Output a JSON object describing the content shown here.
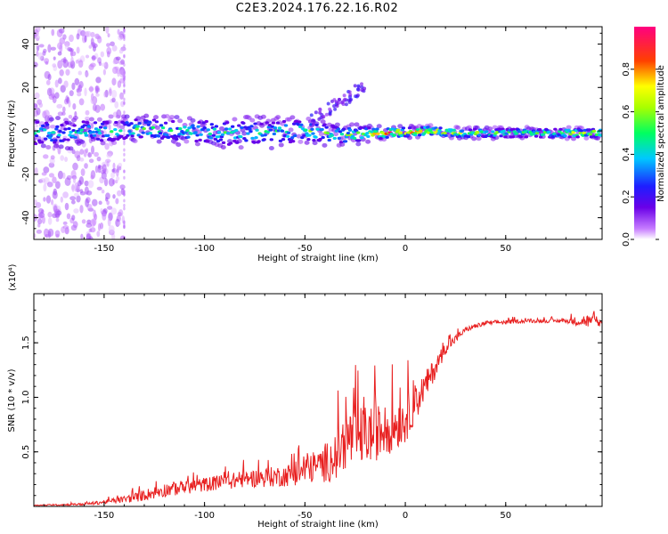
{
  "title": "C2E3.2024.176.22.16.R02",
  "chart_data": [
    {
      "type": "heatmap",
      "xlabel": "Height of straight line (km)",
      "ylabel": "Frequency (Hz)",
      "xlim": [
        -185,
        98
      ],
      "ylim": [
        -50,
        48
      ],
      "xticks": [
        -150,
        -100,
        -50,
        0,
        50
      ],
      "yticks": [
        -40,
        -20,
        0,
        20,
        40
      ],
      "colorbar": {
        "label": "Normalized spectral amplitude",
        "range": [
          0.0,
          1.0
        ],
        "ticks": [
          0.0,
          0.2,
          0.4,
          0.6,
          0.8
        ],
        "tick_labels": [
          "0.0",
          "0.2",
          "0.4",
          "0.6",
          "0.8"
        ],
        "colormap": "rainbow (white-violet-blue-cyan-green-yellow-red-magenta)"
      },
      "bands": [
        {
          "x": [
            -170,
            -150,
            -130,
            -110,
            -90,
            -70,
            -50,
            -30,
            -10,
            10,
            30,
            50,
            70,
            90
          ],
          "center_hz": [
            -1,
            0,
            1,
            0,
            -1,
            -1,
            0,
            -2,
            -1,
            0,
            -1,
            -1,
            -1,
            -1
          ],
          "half_width_hz": [
            7,
            6,
            6,
            6,
            7,
            7,
            6,
            5,
            3,
            2.5,
            2.5,
            2.5,
            2.5,
            2.5
          ],
          "peak_amplitude": [
            0.45,
            0.5,
            0.55,
            0.5,
            0.5,
            0.5,
            0.55,
            0.6,
            0.85,
            0.95,
            0.7,
            0.6,
            0.6,
            0.8
          ]
        }
      ]
    },
    {
      "type": "line",
      "xlabel": "Height of straight line (km)",
      "ylabel": "SNR (10 * v/v)",
      "y_multiplier": "(x10⁴)",
      "xlim": [
        -185,
        98
      ],
      "ylim": [
        0,
        1.95
      ],
      "xticks": [
        -150,
        -100,
        -50,
        0,
        50
      ],
      "yticks": [
        0.5,
        1.0,
        1.5
      ],
      "ytick_labels": [
        "0.5",
        "1.0",
        "1.5"
      ],
      "series": [
        {
          "color": "#e82020",
          "x": [
            -185,
            -160,
            -145,
            -135,
            -120,
            -100,
            -80,
            -60,
            -45,
            -35,
            -30,
            -20,
            -10,
            0,
            10,
            20,
            30,
            40,
            60,
            80,
            90,
            98
          ],
          "y_envelope": [
            0.01,
            0.02,
            0.05,
            0.08,
            0.15,
            0.2,
            0.25,
            0.28,
            0.35,
            0.45,
            0.6,
            0.65,
            0.7,
            0.8,
            1.1,
            1.45,
            1.62,
            1.68,
            1.7,
            1.7,
            1.7,
            1.68
          ],
          "noise": [
            0.005,
            0.02,
            0.04,
            0.08,
            0.12,
            0.12,
            0.14,
            0.18,
            0.25,
            0.4,
            0.5,
            0.5,
            0.45,
            0.4,
            0.25,
            0.1,
            0.04,
            0.04,
            0.03,
            0.03,
            0.12,
            0.05
          ]
        }
      ]
    }
  ]
}
